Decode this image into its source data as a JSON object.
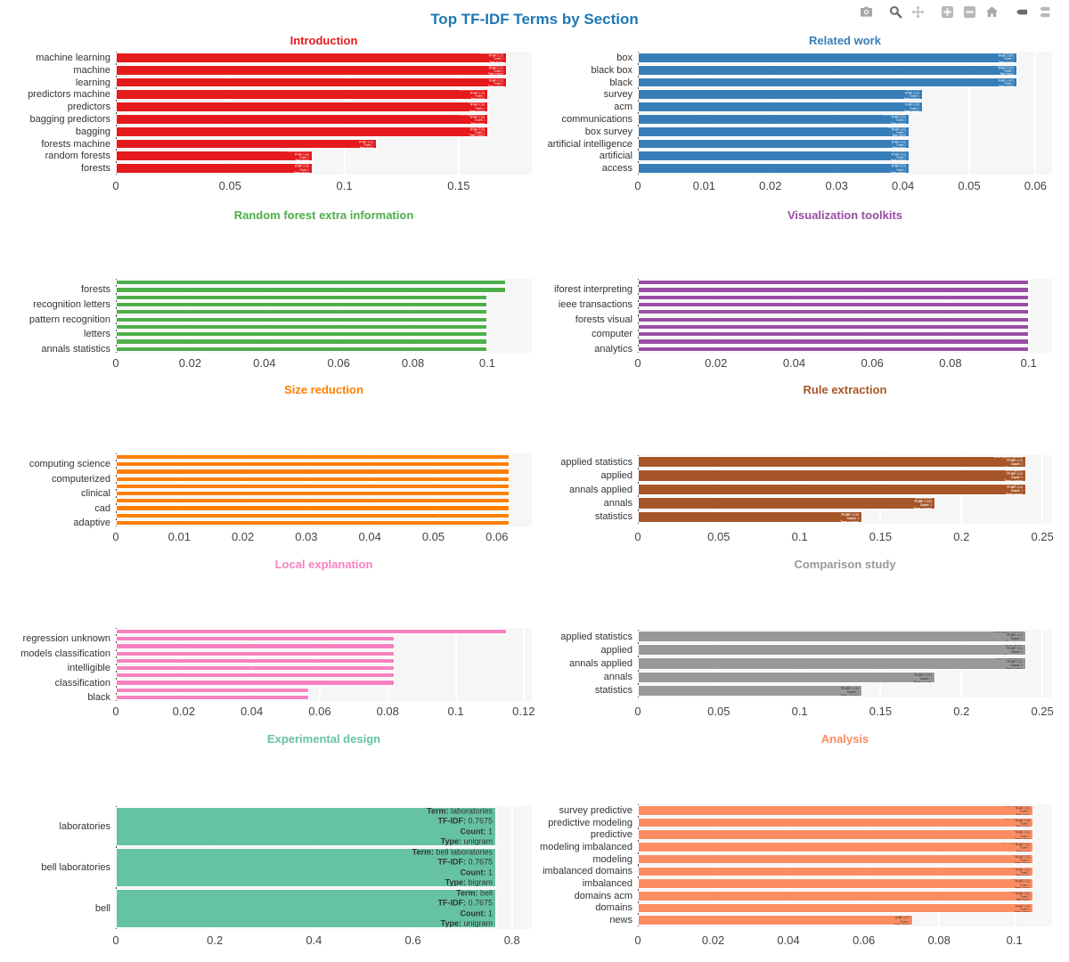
{
  "page": {
    "title": "Top TF-IDF Terms by Section",
    "title_color": "#1f77b4",
    "plot_bg": "#f6f6f6"
  },
  "modebar": {
    "buttons": [
      "camera-icon",
      "zoom-icon",
      "pan-icon",
      "zoom-in-icon",
      "zoom-out-icon",
      "home-icon",
      "hover-closest-icon",
      "hover-compare-icon"
    ],
    "active_color": "#6b6b6b",
    "inactive_color": "#b4b4b4"
  },
  "chart_data": [
    {
      "type": "bar",
      "title": "Introduction",
      "color": "#e41a1c",
      "text_color": "#ffffff",
      "show_text": true,
      "xlabel": "",
      "ylabel": "",
      "xmax": 0.182,
      "tick_vals": [
        0,
        0.05,
        0.1,
        0.15
      ],
      "tick_labels_x": [
        "0",
        "0.05",
        "0.1",
        "0.15"
      ],
      "bars": [
        {
          "label": "machine learning",
          "value": 0.171,
          "tfidf": "0.171",
          "count": "1",
          "word_type": "bigram"
        },
        {
          "label": "machine",
          "value": 0.171,
          "tfidf": "0.171",
          "count": "1",
          "word_type": "unigram"
        },
        {
          "label": "learning",
          "value": 0.171,
          "tfidf": "0.171",
          "count": "1",
          "word_type": "unigram"
        },
        {
          "label": "predictors machine",
          "value": 0.163,
          "tfidf": "0.163",
          "count": "1",
          "word_type": "bigram"
        },
        {
          "label": "predictors",
          "value": 0.163,
          "tfidf": "0.163",
          "count": "1",
          "word_type": "unigram"
        },
        {
          "label": "bagging predictors",
          "value": 0.163,
          "tfidf": "0.163",
          "count": "1",
          "word_type": "bigram"
        },
        {
          "label": "bagging",
          "value": 0.163,
          "tfidf": "0.163",
          "count": "1",
          "word_type": "unigram"
        },
        {
          "label": "forests machine",
          "value": 0.114,
          "tfidf": "0.114",
          "count": "1",
          "word_type": "bigram"
        },
        {
          "label": "random forests",
          "value": 0.086,
          "tfidf": "0.086",
          "count": "1",
          "word_type": "bigram"
        },
        {
          "label": "forests",
          "value": 0.086,
          "tfidf": "0.086",
          "count": "1",
          "word_type": "unigram"
        }
      ]
    },
    {
      "type": "bar",
      "title": "Related work",
      "color": "#377eb8",
      "text_color": "#ffffff",
      "show_text": true,
      "xlabel": "",
      "ylabel": "",
      "xmax": 0.0625,
      "tick_vals": [
        0,
        0.01,
        0.02,
        0.03,
        0.04,
        0.05,
        0.06
      ],
      "tick_labels_x": [
        "0",
        "0.01",
        "0.02",
        "0.03",
        "0.04",
        "0.05",
        "0.06"
      ],
      "bars": [
        {
          "label": "box",
          "value": 0.0573,
          "tfidf": "0.0573",
          "count": "1",
          "word_type": "unigram"
        },
        {
          "label": "black box",
          "value": 0.0573,
          "tfidf": "0.0573",
          "count": "1",
          "word_type": "bigram"
        },
        {
          "label": "black",
          "value": 0.0573,
          "tfidf": "0.0573",
          "count": "1",
          "word_type": "unigram"
        },
        {
          "label": "survey",
          "value": 0.043,
          "tfidf": "0.043",
          "count": "1",
          "word_type": "unigram"
        },
        {
          "label": "acm",
          "value": 0.043,
          "tfidf": "0.043",
          "count": "1",
          "word_type": "unigram"
        },
        {
          "label": "communications",
          "value": 0.041,
          "tfidf": "0.041",
          "count": "1",
          "word_type": "unigram"
        },
        {
          "label": "box survey",
          "value": 0.041,
          "tfidf": "0.041",
          "count": "1",
          "word_type": "bigram"
        },
        {
          "label": "artificial intelligence",
          "value": 0.041,
          "tfidf": "0.041",
          "count": "1",
          "word_type": "bigram"
        },
        {
          "label": "artificial",
          "value": 0.041,
          "tfidf": "0.041",
          "count": "1",
          "word_type": "unigram"
        },
        {
          "label": "access",
          "value": 0.041,
          "tfidf": "0.041",
          "count": "1",
          "word_type": "unigram"
        }
      ]
    },
    {
      "type": "bar",
      "title": "Random forest extra information",
      "color": "#4daf4a",
      "text_color": "#ffffff",
      "show_text": false,
      "xlabel": "",
      "ylabel": "",
      "xmax": 0.112,
      "tick_vals": [
        0,
        0.02,
        0.04,
        0.06,
        0.08,
        0.1
      ],
      "tick_labels_x": [
        "0",
        "0.02",
        "0.04",
        "0.06",
        "0.08",
        "0.1"
      ],
      "values": [
        0.105,
        0.105,
        0.1,
        0.1,
        0.1,
        0.1,
        0.1,
        0.1,
        0.1,
        0.1
      ],
      "tick_labels_y": [
        "forests",
        "recognition letters",
        "pattern recognition",
        "letters",
        "annals statistics"
      ]
    },
    {
      "type": "bar",
      "title": "Visualization toolkits",
      "color": "#984ea3",
      "text_color": "#ffffff",
      "show_text": false,
      "xlabel": "",
      "ylabel": "",
      "xmax": 0.106,
      "tick_vals": [
        0,
        0.02,
        0.04,
        0.06,
        0.08,
        0.1
      ],
      "tick_labels_x": [
        "0",
        "0.02",
        "0.04",
        "0.06",
        "0.08",
        "0.1"
      ],
      "values": [
        0.1,
        0.1,
        0.1,
        0.1,
        0.1,
        0.1,
        0.1,
        0.1,
        0.1,
        0.1
      ],
      "tick_labels_y": [
        "iforest interpreting",
        "ieee transactions",
        "forests visual",
        "computer",
        "analytics"
      ]
    },
    {
      "type": "bar",
      "title": "Size reduction",
      "color": "#ff7f00",
      "text_color": "#ffffff",
      "show_text": false,
      "xlabel": "",
      "ylabel": "",
      "xmax": 0.0655,
      "tick_vals": [
        0,
        0.01,
        0.02,
        0.03,
        0.04,
        0.05,
        0.06
      ],
      "tick_labels_x": [
        "0",
        "0.01",
        "0.02",
        "0.03",
        "0.04",
        "0.05",
        "0.06"
      ],
      "values": [
        0.062,
        0.062,
        0.062,
        0.062,
        0.062,
        0.062,
        0.062,
        0.062,
        0.062,
        0.062
      ],
      "tick_labels_y": [
        "computing science",
        "computerized",
        "clinical",
        "cad",
        "adaptive"
      ]
    },
    {
      "type": "bar",
      "title": "Rule extraction",
      "color": "#a65628",
      "text_color": "#ffffff",
      "show_text": true,
      "xlabel": "",
      "ylabel": "",
      "xmax": 0.256,
      "tick_vals": [
        0,
        0.05,
        0.1,
        0.15,
        0.2,
        0.25
      ],
      "tick_labels_x": [
        "0",
        "0.05",
        "0.1",
        "0.15",
        "0.2",
        "0.25"
      ],
      "bars": [
        {
          "label": "applied statistics",
          "value": 0.24,
          "tfidf": "0.24",
          "count": "1",
          "word_type": "bigram"
        },
        {
          "label": "applied",
          "value": 0.24,
          "tfidf": "0.24",
          "count": "1",
          "word_type": "unigram"
        },
        {
          "label": "annals applied",
          "value": 0.24,
          "tfidf": "0.24",
          "count": "1",
          "word_type": "bigram"
        },
        {
          "label": "annals",
          "value": 0.184,
          "tfidf": "0.184",
          "count": "1",
          "word_type": "unigram"
        },
        {
          "label": "statistics",
          "value": 0.139,
          "tfidf": "0.139",
          "count": "1",
          "word_type": "unigram"
        }
      ]
    },
    {
      "type": "bar",
      "title": "Local explanation",
      "color": "#f781bf",
      "text_color": "#333333",
      "show_text": false,
      "xlabel": "",
      "ylabel": "",
      "xmax": 0.1224,
      "tick_vals": [
        0,
        0.02,
        0.04,
        0.06,
        0.08,
        0.1,
        0.12
      ],
      "tick_labels_x": [
        "0",
        "0.02",
        "0.04",
        "0.06",
        "0.08",
        "0.1",
        "0.12"
      ],
      "values": [
        0.115,
        0.082,
        0.082,
        0.082,
        0.082,
        0.082,
        0.082,
        0.082,
        0.057,
        0.057
      ],
      "tick_labels_y": [
        "regression unknown",
        "models classification",
        "intelligible",
        "classification",
        "black"
      ]
    },
    {
      "type": "bar",
      "title": "Comparison study",
      "color": "#999999",
      "text_color": "#3d3d3d",
      "show_text": true,
      "xlabel": "",
      "ylabel": "",
      "xmax": 0.256,
      "tick_vals": [
        0,
        0.05,
        0.1,
        0.15,
        0.2,
        0.25
      ],
      "tick_labels_x": [
        "0",
        "0.05",
        "0.1",
        "0.15",
        "0.2",
        "0.25"
      ],
      "bars": [
        {
          "label": "applied statistics",
          "value": 0.24,
          "tfidf": "0.24",
          "count": "1",
          "word_type": "bigram"
        },
        {
          "label": "applied",
          "value": 0.24,
          "tfidf": "0.24",
          "count": "1",
          "word_type": "unigram"
        },
        {
          "label": "annals applied",
          "value": 0.24,
          "tfidf": "0.24",
          "count": "1",
          "word_type": "bigram"
        },
        {
          "label": "annals",
          "value": 0.184,
          "tfidf": "0.184",
          "count": "1",
          "word_type": "unigram"
        },
        {
          "label": "statistics",
          "value": 0.139,
          "tfidf": "0.139",
          "count": "1",
          "word_type": "unigram"
        }
      ]
    },
    {
      "type": "bar",
      "title": "Experimental design",
      "color": "#66c2a5",
      "text_color": "#333333",
      "show_text": true,
      "xlabel": "",
      "ylabel": "",
      "xmax": 0.84,
      "tick_vals": [
        0,
        0.2,
        0.4,
        0.6,
        0.8
      ],
      "tick_labels_x": [
        "0",
        "0.2",
        "0.4",
        "0.6",
        "0.8"
      ],
      "bars": [
        {
          "label": "laboratories",
          "value": 0.7675,
          "tfidf": "0.7675",
          "count": "1",
          "word_type": "unigram"
        },
        {
          "label": "bell laboratories",
          "value": 0.7675,
          "tfidf": "0.7675",
          "count": "1",
          "word_type": "bigram"
        },
        {
          "label": "bell",
          "value": 0.7675,
          "tfidf": "0.7675",
          "count": "1",
          "word_type": "unigram"
        }
      ]
    },
    {
      "type": "bar",
      "title": "Analysis",
      "color": "#fc8d62",
      "text_color": "#333333",
      "show_text": true,
      "xlabel": "",
      "ylabel": "",
      "xmax": 0.11,
      "tick_vals": [
        0,
        0.02,
        0.04,
        0.06,
        0.08,
        0.1
      ],
      "tick_labels_x": [
        "0",
        "0.02",
        "0.04",
        "0.06",
        "0.08",
        "0.1"
      ],
      "bars": [
        {
          "label": "survey predictive",
          "value": 0.105,
          "tfidf": "0.105",
          "count": "1",
          "word_type": "bigram"
        },
        {
          "label": "predictive modeling",
          "value": 0.105,
          "tfidf": "0.105",
          "count": "1",
          "word_type": "bigram"
        },
        {
          "label": "predictive",
          "value": 0.105,
          "tfidf": "0.105",
          "count": "1",
          "word_type": "unigram"
        },
        {
          "label": "modeling imbalanced",
          "value": 0.105,
          "tfidf": "0.105",
          "count": "1",
          "word_type": "bigram"
        },
        {
          "label": "modeling",
          "value": 0.105,
          "tfidf": "0.105",
          "count": "1",
          "word_type": "unigram"
        },
        {
          "label": "imbalanced domains",
          "value": 0.105,
          "tfidf": "0.105",
          "count": "1",
          "word_type": "bigram"
        },
        {
          "label": "imbalanced",
          "value": 0.105,
          "tfidf": "0.105",
          "count": "1",
          "word_type": "unigram"
        },
        {
          "label": "domains acm",
          "value": 0.105,
          "tfidf": "0.105",
          "count": "1",
          "word_type": "bigram"
        },
        {
          "label": "domains",
          "value": 0.105,
          "tfidf": "0.105",
          "count": "1",
          "word_type": "unigram"
        },
        {
          "label": "news",
          "value": 0.073,
          "tfidf": "0.073",
          "count": "1",
          "word_type": "unigram"
        }
      ]
    }
  ],
  "bar_text_template": {
    "term_label": "Term:",
    "tfidf_label": "TF-IDF:",
    "count_label": "Count:",
    "type_label": "Type:"
  }
}
